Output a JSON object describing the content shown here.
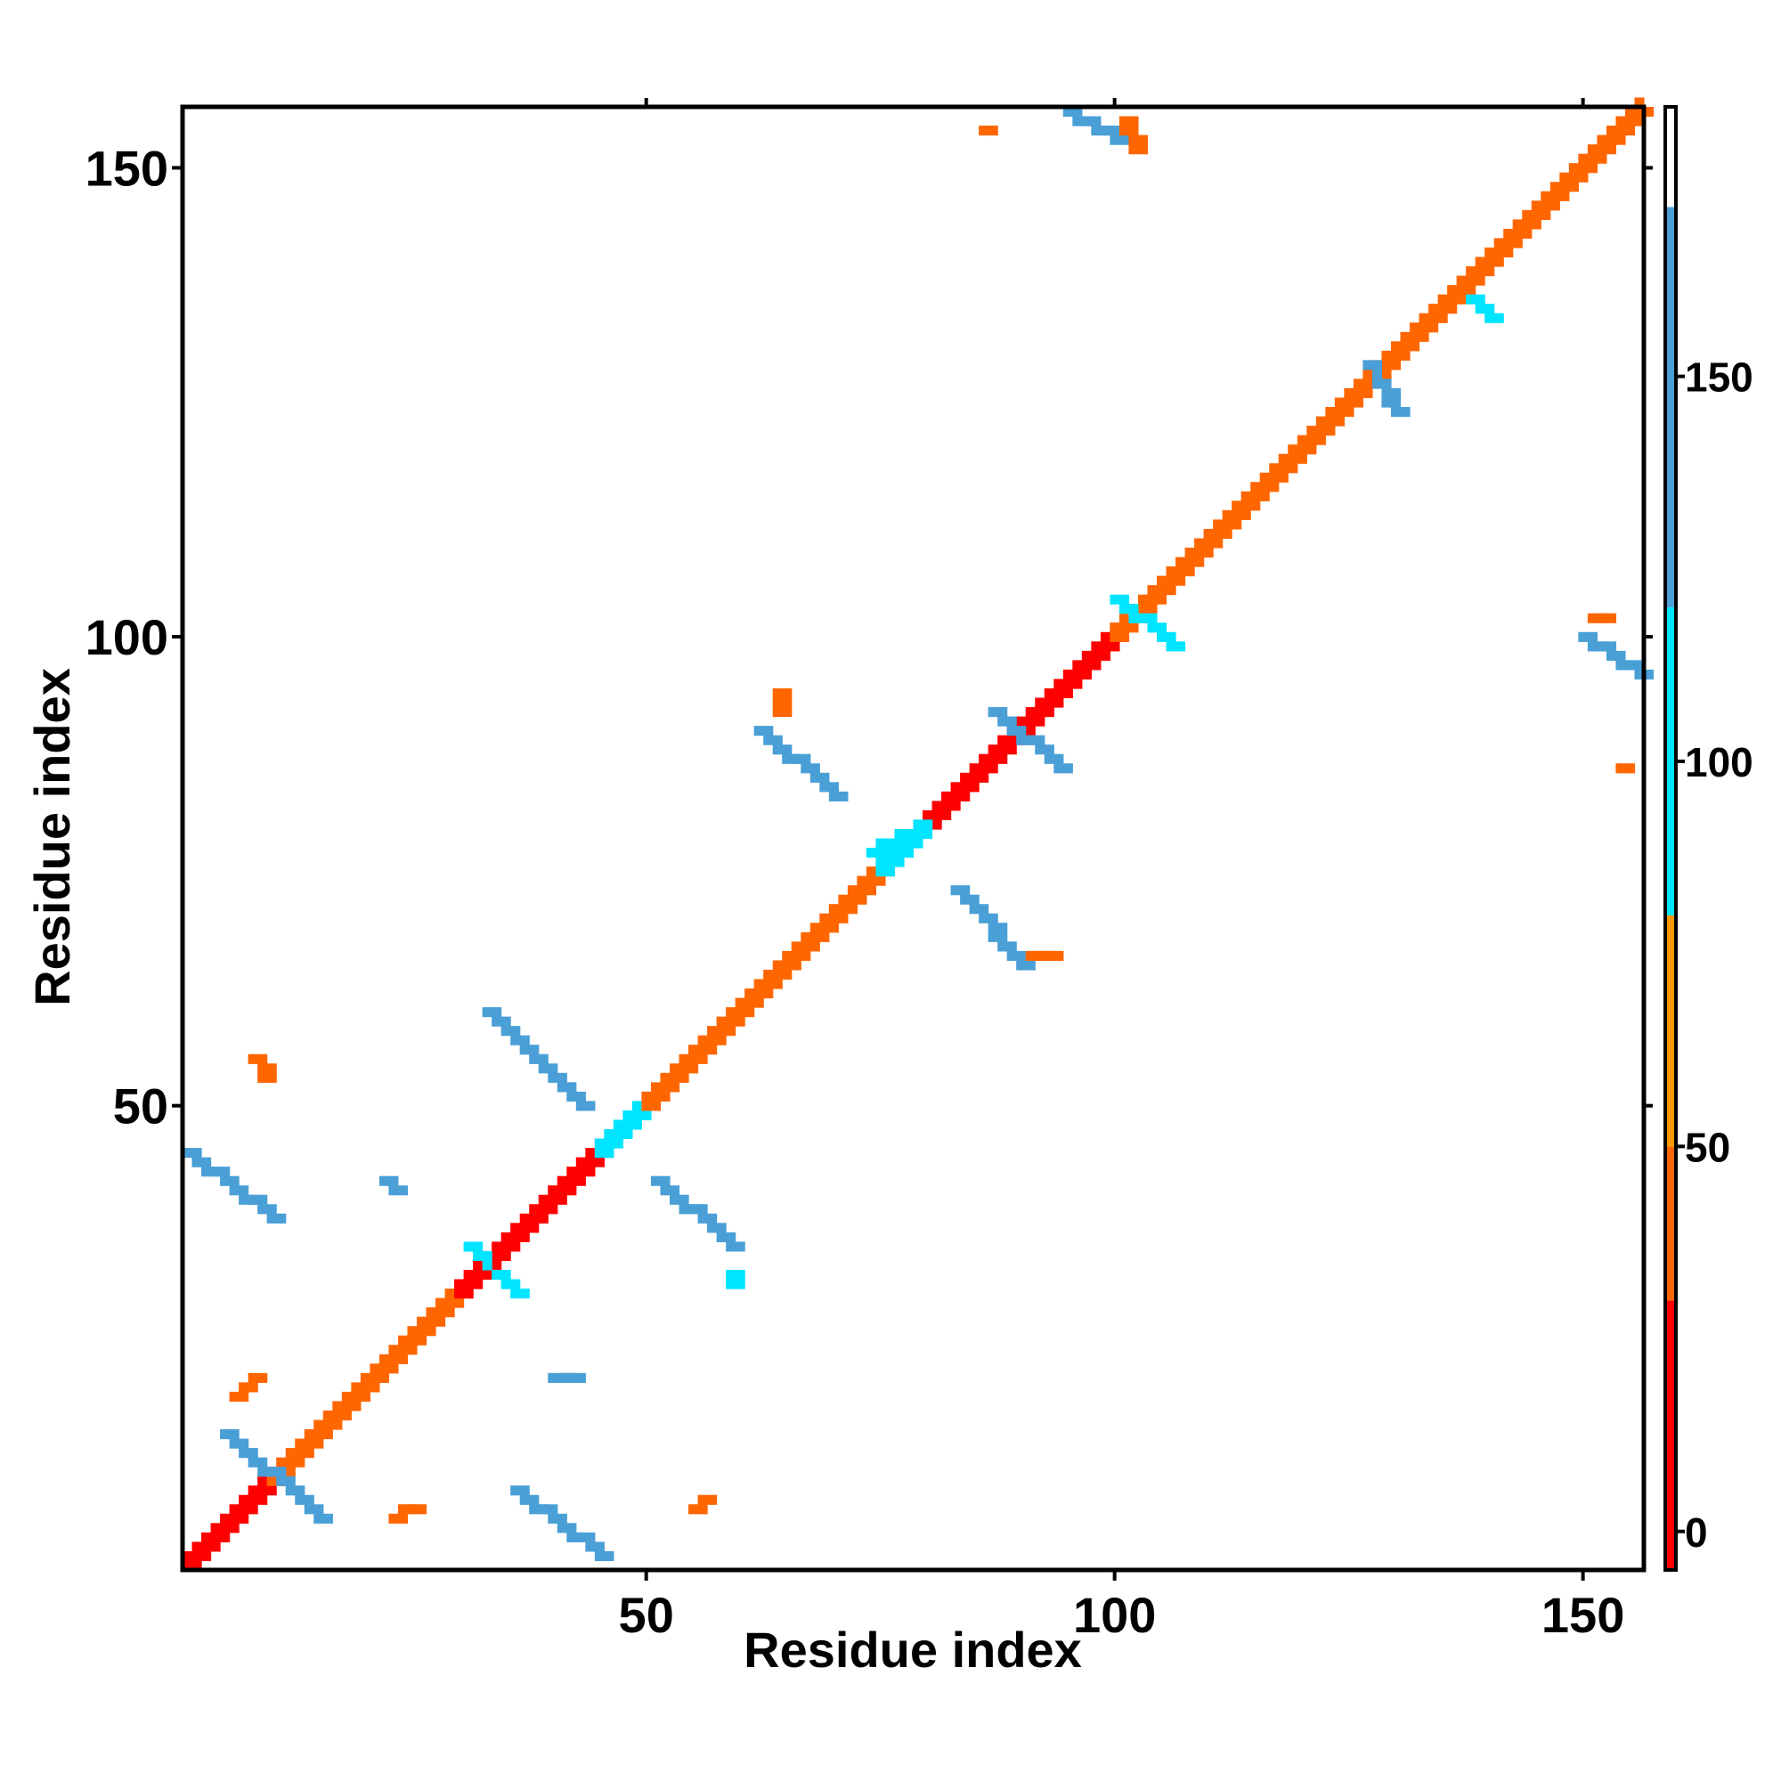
{
  "chart_data": {
    "type": "heatmap",
    "xlabel": "Residue index",
    "ylabel": "Residue index",
    "xlim": [
      0.5,
      156.5
    ],
    "ylim": [
      0.5,
      156.5
    ],
    "x_ticks": [
      50,
      100,
      150
    ],
    "y_ticks": [
      50,
      100,
      150
    ],
    "colorbar": {
      "range": [
        -5,
        185
      ],
      "ticks": [
        0,
        50,
        100,
        150
      ],
      "bands": [
        {
          "from": -5,
          "to": 30,
          "color": "#ff0000"
        },
        {
          "from": 30,
          "to": 50,
          "color": "#ff6600"
        },
        {
          "from": 50,
          "to": 80,
          "color": "#ff9900"
        },
        {
          "from": 80,
          "to": 120,
          "color": "#00e5ff"
        },
        {
          "from": 120,
          "to": 172,
          "color": "#4a9fd6"
        },
        {
          "from": 172,
          "to": 185,
          "color": "#ffffff"
        }
      ]
    },
    "grid": false,
    "legend": "right",
    "segments": [
      {
        "from": [
          1,
          1
        ],
        "to": [
          10,
          10
        ],
        "value": 10
      },
      {
        "from": [
          10,
          10
        ],
        "to": [
          30,
          30
        ],
        "value": 40
      },
      {
        "from": [
          30,
          30
        ],
        "to": [
          45,
          45
        ],
        "value": 15
      },
      {
        "from": [
          45,
          45
        ],
        "to": [
          50,
          50
        ],
        "value": 90
      },
      {
        "from": [
          50,
          50
        ],
        "to": [
          75,
          75
        ],
        "value": 35
      },
      {
        "from": [
          75,
          75
        ],
        "to": [
          80,
          80
        ],
        "value": 90
      },
      {
        "from": [
          80,
          80
        ],
        "to": [
          100,
          100
        ],
        "value": 10
      },
      {
        "from": [
          100,
          100
        ],
        "to": [
          156,
          156
        ],
        "value": 45
      },
      {
        "from": [
          1,
          45
        ],
        "to": [
          10,
          38
        ],
        "value": 140
      },
      {
        "from": [
          5,
          15
        ],
        "to": [
          15,
          6
        ],
        "value": 130
      },
      {
        "from": [
          6,
          19
        ],
        "to": [
          8,
          21
        ],
        "value": 35
      },
      {
        "from": [
          9,
          53
        ],
        "to": [
          8,
          55
        ],
        "value": 40
      },
      {
        "from": [
          33,
          60
        ],
        "to": [
          43,
          50
        ],
        "value": 150
      },
      {
        "from": [
          31,
          35
        ],
        "to": [
          36,
          30
        ],
        "value": 110
      },
      {
        "from": [
          36,
          9
        ],
        "to": [
          45,
          2
        ],
        "value": 140
      },
      {
        "from": [
          23,
          6
        ],
        "to": [
          25,
          7
        ],
        "value": 40
      },
      {
        "from": [
          40,
          21
        ],
        "to": [
          42,
          21
        ],
        "value": 150
      },
      {
        "from": [
          22,
          42
        ],
        "to": [
          23,
          41
        ],
        "value": 150
      },
      {
        "from": [
          51,
          42
        ],
        "to": [
          59,
          35
        ],
        "value": 150
      },
      {
        "from": [
          59,
          32
        ],
        "to": [
          59,
          31
        ],
        "value": 100
      },
      {
        "from": [
          55,
          7
        ],
        "to": [
          56,
          8
        ],
        "value": 40
      },
      {
        "from": [
          62,
          90
        ],
        "to": [
          70,
          83
        ],
        "value": 140
      },
      {
        "from": [
          64,
          94
        ],
        "to": [
          64,
          92
        ],
        "value": 40
      },
      {
        "from": [
          83,
          73
        ],
        "to": [
          90,
          65
        ],
        "value": 140
      },
      {
        "from": [
          91,
          66
        ],
        "to": [
          93,
          66
        ],
        "value": 40
      },
      {
        "from": [
          74,
          77
        ],
        "to": [
          80,
          80
        ],
        "value": 110
      },
      {
        "from": [
          87,
          92
        ],
        "to": [
          94,
          86
        ],
        "value": 130
      },
      {
        "from": [
          95,
          156
        ],
        "to": [
          100,
          153
        ],
        "value": 140
      },
      {
        "from": [
          101,
          155
        ],
        "to": [
          102,
          152
        ],
        "value": 40
      },
      {
        "from": [
          86,
          154
        ],
        "to": [
          86,
          154
        ],
        "value": 40
      },
      {
        "from": [
          100,
          104
        ],
        "to": [
          106,
          99
        ],
        "value": 110
      },
      {
        "from": [
          150,
          100
        ],
        "to": [
          156,
          96
        ],
        "value": 140
      },
      {
        "from": [
          151,
          102
        ],
        "to": [
          152,
          102
        ],
        "value": 40
      },
      {
        "from": [
          154,
          86
        ],
        "to": [
          154,
          86
        ],
        "value": 40
      },
      {
        "from": [
          127,
          129
        ],
        "to": [
          130,
          124
        ],
        "value": 120
      },
      {
        "from": [
          138,
          136
        ],
        "to": [
          140,
          134
        ],
        "value": 110
      }
    ]
  }
}
